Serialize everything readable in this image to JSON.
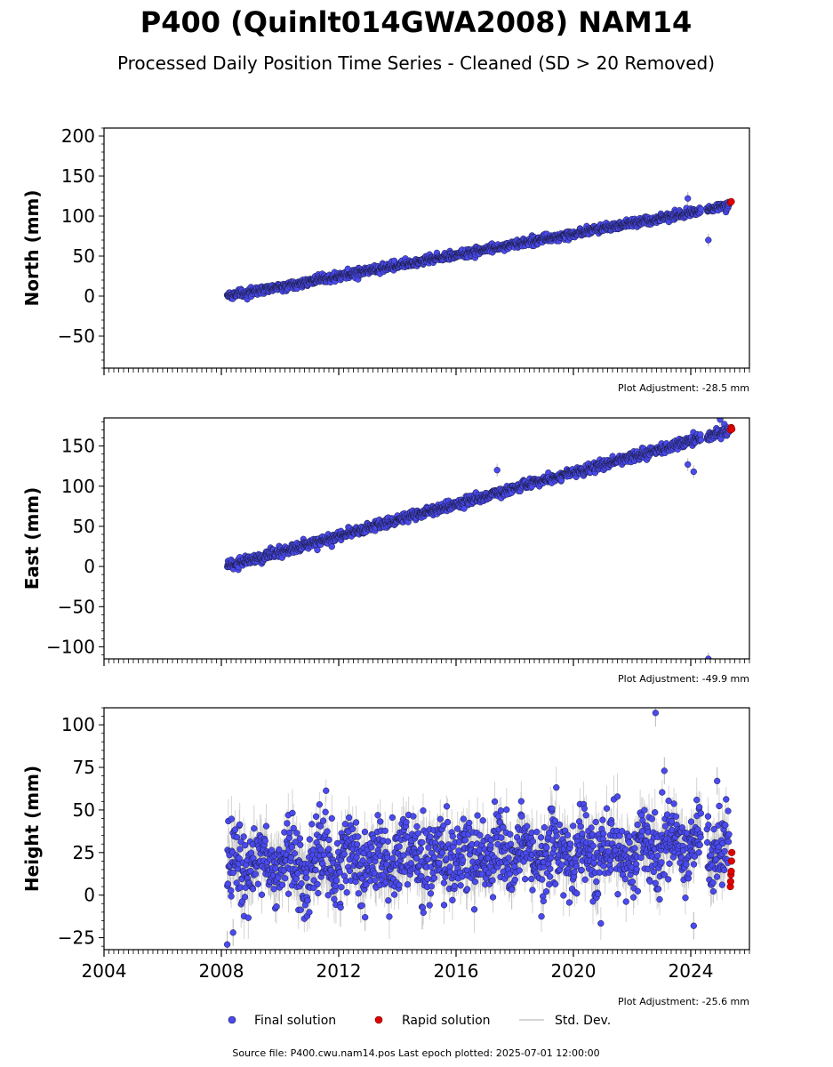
{
  "title": "P400 (Quinlt014GWA2008) NAM14",
  "subtitle": "Processed Daily Position Time Series - Cleaned (SD > 20 Removed)",
  "source": "Source file: P400.cwu.nam14.pos  Last epoch plotted: 2025-07-01 12:00:00",
  "colors": {
    "final": "#4a4af0",
    "final_edge": "#1a1a3a",
    "rapid": "#e00000",
    "std": "#b8b8b8"
  },
  "legend": {
    "final": "Final solution",
    "rapid": "Rapid solution",
    "std": "Std. Dev."
  },
  "chart_data": [
    {
      "type": "scatter",
      "component": "north",
      "ylabel": "North (mm)",
      "ylim": [
        -90,
        210
      ],
      "yticks": [
        -50,
        0,
        50,
        100,
        150,
        200
      ],
      "xlim": [
        2004,
        2026
      ],
      "adjustment": "Plot Adjustment: -28.5 mm",
      "start_year": 2008.2,
      "end_year": 2025.3,
      "rate_mm_per_yr": 6.6,
      "start_value": 0,
      "noise_mm": 2.5,
      "outliers": [
        {
          "x": 2023.9,
          "y": 122
        },
        {
          "x": 2024.6,
          "y": 70
        }
      ],
      "rapid": [
        {
          "x": 2025.35,
          "y": 117
        },
        {
          "x": 2025.38,
          "y": 118
        }
      ]
    },
    {
      "type": "scatter",
      "component": "east",
      "ylabel": "East (mm)",
      "ylim": [
        -115,
        185
      ],
      "yticks": [
        -100,
        -50,
        0,
        50,
        100,
        150
      ],
      "xlim": [
        2004,
        2026
      ],
      "adjustment": "Plot Adjustment: -49.9 mm",
      "start_year": 2008.2,
      "end_year": 2025.3,
      "rate_mm_per_yr": 9.9,
      "start_value": 0,
      "noise_mm": 3,
      "outliers": [
        {
          "x": 2017.4,
          "y": 120
        },
        {
          "x": 2023.9,
          "y": 127
        },
        {
          "x": 2024.1,
          "y": 118
        },
        {
          "x": 2024.6,
          "y": -115
        },
        {
          "x": 2025.0,
          "y": 183
        }
      ],
      "rapid": [
        {
          "x": 2025.35,
          "y": 170
        },
        {
          "x": 2025.38,
          "y": 173
        },
        {
          "x": 2025.4,
          "y": 171
        }
      ]
    },
    {
      "type": "scatter",
      "component": "height",
      "ylabel": "Height (mm)",
      "ylim": [
        -32,
        110
      ],
      "yticks": [
        -25,
        0,
        25,
        50,
        75,
        100
      ],
      "xlim": [
        2004,
        2026
      ],
      "xticks": [
        2004,
        2008,
        2012,
        2016,
        2020,
        2024
      ],
      "adjustment": "Plot Adjustment: -25.6 mm",
      "start_year": 2008.2,
      "end_year": 2025.3,
      "rate_mm_per_yr": 0.6,
      "start_value": 18,
      "noise_mm": 11,
      "outliers": [
        {
          "x": 2008.2,
          "y": -29
        },
        {
          "x": 2008.4,
          "y": -22
        },
        {
          "x": 2012.9,
          "y": -13
        },
        {
          "x": 2022.8,
          "y": 107
        },
        {
          "x": 2023.1,
          "y": 73
        },
        {
          "x": 2024.1,
          "y": -18
        },
        {
          "x": 2024.9,
          "y": 67
        }
      ],
      "rapid": [
        {
          "x": 2025.35,
          "y": 5
        },
        {
          "x": 2025.36,
          "y": 8
        },
        {
          "x": 2025.37,
          "y": 12
        },
        {
          "x": 2025.38,
          "y": 14
        },
        {
          "x": 2025.39,
          "y": 20
        },
        {
          "x": 2025.4,
          "y": 25
        }
      ]
    }
  ]
}
